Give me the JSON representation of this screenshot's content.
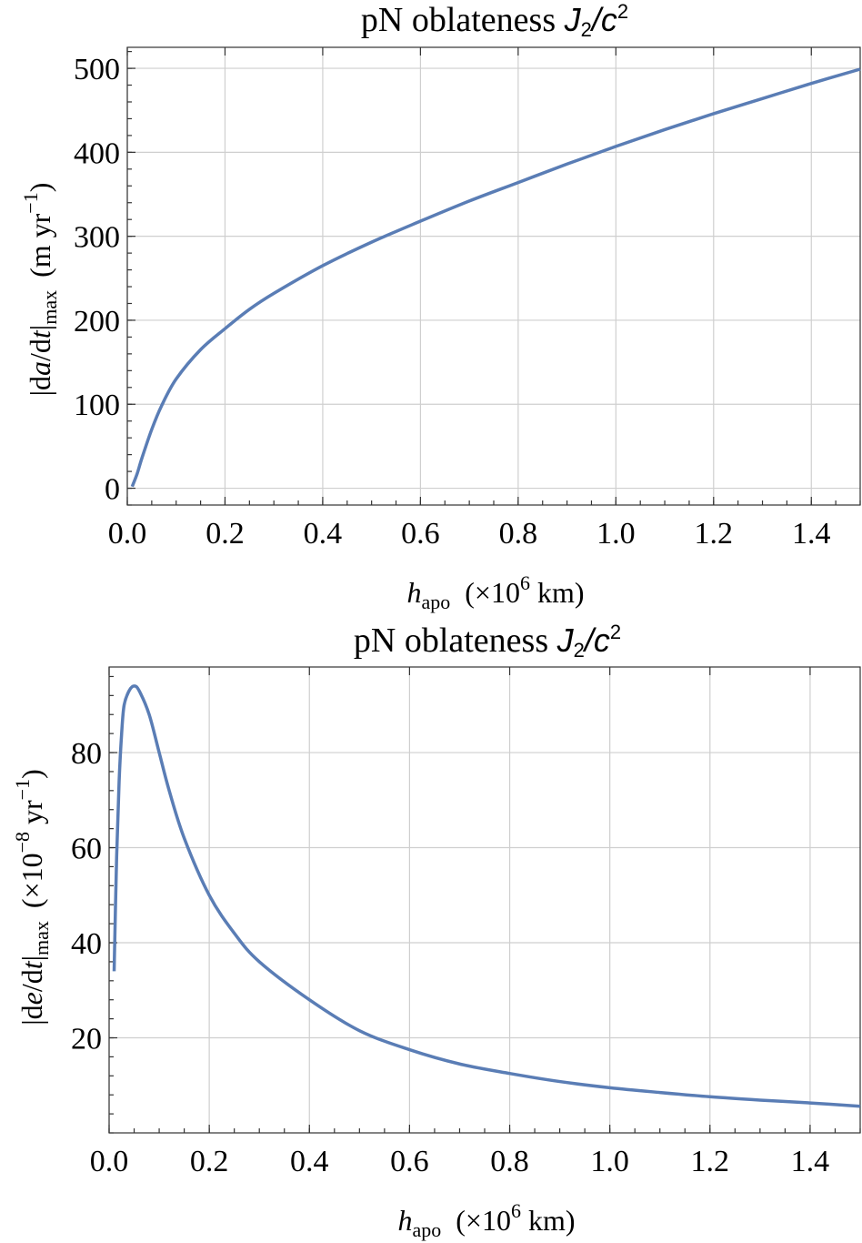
{
  "chart_data": [
    {
      "type": "line",
      "title": "pN oblateness J₂/c²",
      "title_parts": {
        "prefix": "pN oblateness ",
        "J": "J",
        "sub": "2",
        "slash": "/",
        "c": "c",
        "sup": "2"
      },
      "xlabel_parts": {
        "var": "h",
        "sub": "apo",
        "unit": "(×10",
        "exp": "6",
        "unit_end": " km)"
      },
      "ylabel_parts": {
        "pre": "|d",
        "var": "a",
        "mid": "/d",
        "var2": "t",
        "post": "|",
        "sub": "max",
        "unit": "(m  yr",
        "exp": "−1",
        "unit_end": ")"
      },
      "xlim": [
        0.0,
        1.5
      ],
      "ylim": [
        -20,
        525
      ],
      "xticks": [
        "0.0",
        "0.2",
        "0.4",
        "0.6",
        "0.8",
        "1.0",
        "1.2",
        "1.4"
      ],
      "yticks": [
        "0",
        "100",
        "200",
        "300",
        "400",
        "500"
      ],
      "grid": true,
      "series": [
        {
          "x": [
            0.01,
            0.02,
            0.03,
            0.05,
            0.07,
            0.1,
            0.15,
            0.2,
            0.25,
            0.3,
            0.4,
            0.5,
            0.6,
            0.7,
            0.8,
            0.9,
            1.0,
            1.1,
            1.2,
            1.3,
            1.4,
            1.5
          ],
          "y": [
            2,
            17,
            36,
            70,
            98,
            130,
            165,
            190,
            213,
            232,
            265,
            293,
            318,
            342,
            364,
            386,
            407,
            427,
            446,
            464,
            482,
            499
          ]
        }
      ]
    },
    {
      "type": "line",
      "title": "pN oblateness J₂/c²",
      "title_parts": {
        "prefix": "pN oblateness ",
        "J": "J",
        "sub": "2",
        "slash": "/",
        "c": "c",
        "sup": "2"
      },
      "xlabel_parts": {
        "var": "h",
        "sub": "apo",
        "unit": "(×10",
        "exp": "6",
        "unit_end": " km)"
      },
      "ylabel_parts": {
        "pre": "|d",
        "var": "e",
        "mid": "/d",
        "var2": "t",
        "post": "|",
        "sub": "max",
        "unit": "(×10",
        "exp": "−8",
        "unit_end": " yr",
        "exp2": "−1",
        "unit_end2": ")"
      },
      "xlim": [
        0.0,
        1.5
      ],
      "ylim": [
        0,
        98
      ],
      "xticks": [
        "0.0",
        "0.2",
        "0.4",
        "0.6",
        "0.8",
        "1.0",
        "1.2",
        "1.4"
      ],
      "yticks": [
        "20",
        "40",
        "60",
        "80"
      ],
      "grid": true,
      "series": [
        {
          "x": [
            0.01,
            0.015,
            0.02,
            0.025,
            0.03,
            0.04,
            0.05,
            0.06,
            0.08,
            0.1,
            0.12,
            0.15,
            0.2,
            0.25,
            0.3,
            0.4,
            0.5,
            0.6,
            0.7,
            0.8,
            0.9,
            1.0,
            1.1,
            1.2,
            1.3,
            1.4,
            1.5
          ],
          "y": [
            34,
            58,
            74,
            84,
            90,
            93,
            94,
            93,
            88,
            80,
            72,
            62,
            50,
            42,
            36,
            28,
            21.5,
            17.5,
            14.5,
            12.5,
            10.8,
            9.5,
            8.5,
            7.6,
            6.9,
            6.3,
            5.6
          ]
        }
      ]
    }
  ]
}
